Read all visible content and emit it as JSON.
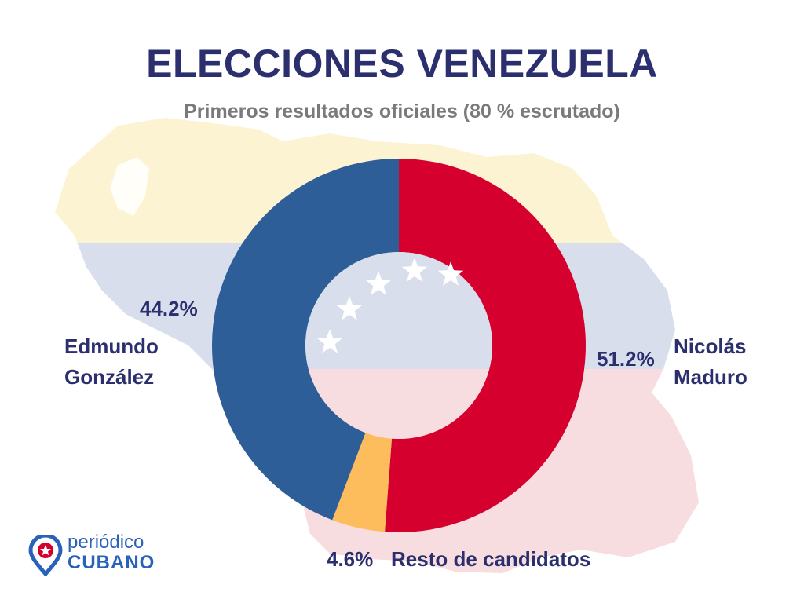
{
  "chart_data": {
    "type": "pie",
    "title": "ELECCIONES VENEZUELA",
    "subtitle": "Primeros resultados oficiales (80 % escrutado)",
    "slices": [
      {
        "name_lines": [
          "Nicolás",
          "Maduro"
        ],
        "value": 51.2,
        "label": "51.2%",
        "color": "#d6002f"
      },
      {
        "name_lines": [
          "Resto de candidatos"
        ],
        "value": 4.6,
        "label": "4.6%",
        "color": "#fdbd5c"
      },
      {
        "name_lines": [
          "Edmundo",
          "González"
        ],
        "value": 44.2,
        "label": "44.2%",
        "color": "#2e5e98"
      }
    ],
    "style": "donut"
  },
  "background": {
    "colors": {
      "yellow": "#fcf3d2",
      "blue": "#d9deec",
      "red": "#f7dce0",
      "star": "#ffffff"
    }
  },
  "logo": {
    "line1": "periódico",
    "line2": "CUBANO",
    "icon": "location-pin-star-icon",
    "color": "#2a62b9",
    "star_color": "#d6002f"
  }
}
